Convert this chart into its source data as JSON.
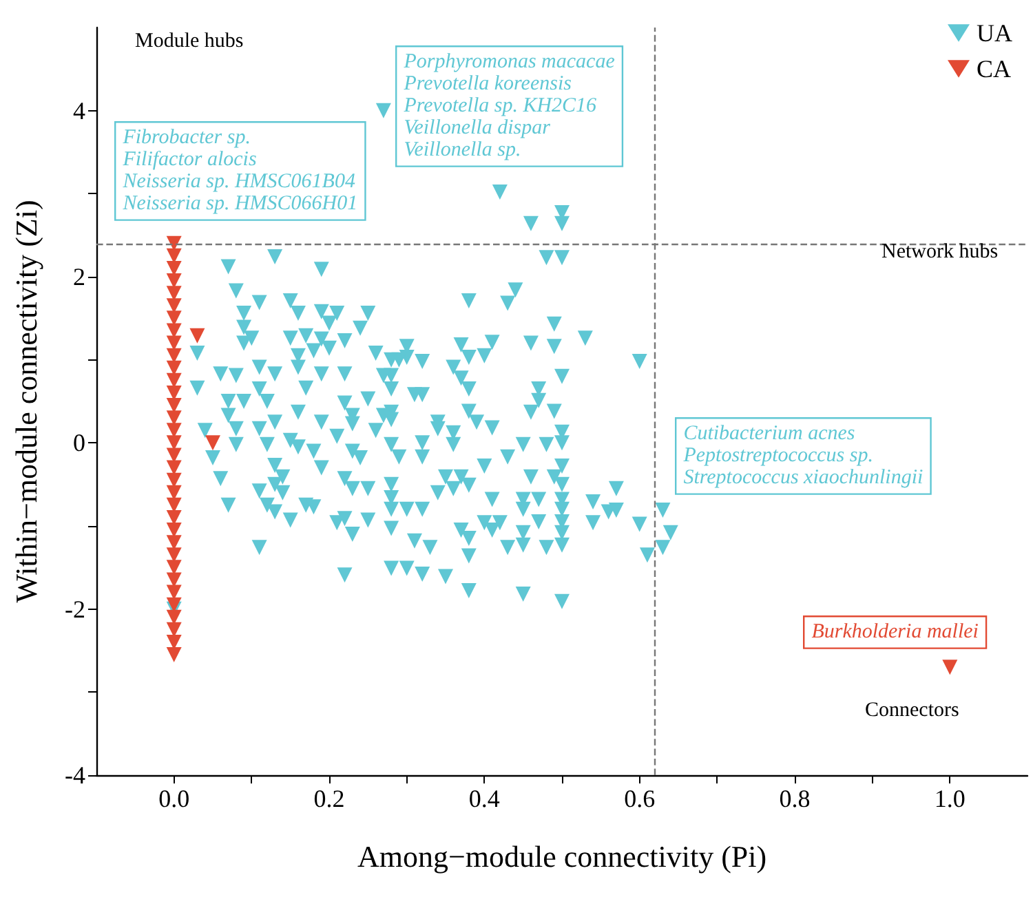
{
  "chart_data": {
    "type": "scatter",
    "xlabel": "Among−module connectivity (Pi)",
    "ylabel": "Within−module connectivity (Zi)",
    "xlim": [
      -0.1,
      1.1
    ],
    "ylim": [
      -4,
      5
    ],
    "xticks": [
      {
        "value": 0,
        "label": "0.0"
      },
      {
        "value": 0.1,
        "label": null
      },
      {
        "value": 0.2,
        "label": "0.2"
      },
      {
        "value": 0.3,
        "label": null
      },
      {
        "value": 0.4,
        "label": "0.4"
      },
      {
        "value": 0.5,
        "label": null
      },
      {
        "value": 0.6,
        "label": "0.6"
      },
      {
        "value": 0.7,
        "label": null
      },
      {
        "value": 0.8,
        "label": "0.8"
      },
      {
        "value": 0.9,
        "label": null
      },
      {
        "value": 1,
        "label": "1.0"
      }
    ],
    "yticks": [
      -4,
      {
        "value": -3,
        "label": null
      },
      -2,
      {
        "value": -1,
        "label": null
      },
      0,
      {
        "value": 1,
        "label": null
      },
      2,
      {
        "value": 3,
        "label": null
      },
      4
    ],
    "grid": false,
    "legend": "top right",
    "marker": "triangle",
    "ref_lines": [
      {
        "axis": "x",
        "value": 0.62,
        "label": null,
        "color": "#777777",
        "line_style": "dashed"
      },
      {
        "axis": "y",
        "value": 2.4,
        "label": null,
        "color": "#777777",
        "line_style": "dashed"
      }
    ],
    "annotations": [
      "Module hubs",
      "Network hubs",
      "Connectors",
      "Fibrobacter sp.\nFilifactor alocis\nNeisseria sp. HMSC061B04\nNeisseria sp. HMSC066H01",
      "Porphyromonas macacae\nPrevotella koreensis\nPrevotella sp. KH2C16\nVeillonella dispar\nVeillonella sp.",
      "Cutibacterium acnes\nPeptostreptococcus sp.\nStreptococcus xiaochunlingii",
      "Burkholderia mallei"
    ],
    "series": [
      {
        "name": "UA",
        "color": "#5fc7d4",
        "x": [
          0.27,
          0.42,
          0.46,
          0.5,
          0.5,
          0.48,
          0.5,
          0.44,
          0.38,
          0.43,
          0.49,
          0.53,
          0.46,
          0.49,
          0.41,
          0.37,
          0.38,
          0.4,
          0.6,
          0.36,
          0.37,
          0.5,
          0.38,
          0.47,
          0.47,
          0.46,
          0.49,
          0.38,
          0.39,
          0.41,
          0.34,
          0.34,
          0.36,
          0.5,
          0.3,
          0.3,
          0.32,
          0.28,
          0.28,
          0.28,
          0.31,
          0.32,
          0.28,
          0.5,
          0.45,
          0.48,
          0.32,
          0.36,
          0.28,
          0.29,
          0.32,
          0.43,
          0.4,
          0.5,
          0.35,
          0.37,
          0.46,
          0.49,
          0.28,
          0.5,
          0.57,
          0.34,
          0.36,
          0.38,
          0.41,
          0.45,
          0.47,
          0.5,
          0.54,
          0.28,
          0.28,
          0.3,
          0.32,
          0.45,
          0.5,
          0.56,
          0.57,
          0.63,
          0.4,
          0.42,
          0.47,
          0.5,
          0.54,
          0.6,
          0.28,
          0.37,
          0.41,
          0.45,
          0.5,
          0.64,
          0.31,
          0.38,
          0.33,
          0.43,
          0.45,
          0.48,
          0.5,
          0.63,
          0.38,
          0.61,
          0.28,
          0.3,
          0.32,
          0.35,
          0.38,
          0.45,
          0.5,
          0.13,
          0.07,
          0.19,
          0.08,
          0.11,
          0.15,
          0.09,
          0.16,
          0.19,
          0.21,
          0.25,
          0.2,
          0.09,
          0.24,
          0.1,
          0.15,
          0.17,
          0.19,
          0.22,
          0.09,
          0.03,
          0.18,
          0.2,
          0.26,
          0.11,
          0.16,
          0.16,
          0.29,
          0.06,
          0.08,
          0.13,
          0.19,
          0.22,
          0.27,
          0.03,
          0.11,
          0.17,
          0.07,
          0.09,
          0.12,
          0.22,
          0.25,
          0.07,
          0.16,
          0.23,
          0.27,
          0.04,
          0.08,
          0.13,
          0.19,
          0.11,
          0.08,
          0.05,
          0.12,
          0.15,
          0.16,
          0.18,
          0.21,
          0.23,
          0.26,
          0.28,
          0.23,
          0.24,
          0.19,
          0.13,
          0.14,
          0.13,
          0.06,
          0.11,
          0.14,
          0.22,
          0.23,
          0.25,
          0.07,
          0.12,
          0.13,
          0.15,
          0.17,
          0.18,
          0.21,
          0.22,
          0.25,
          0.23,
          0.11,
          0.22,
          0
        ],
        "values": [
          4.0,
          3.02,
          2.64,
          2.77,
          2.64,
          2.23,
          2.23,
          1.84,
          1.71,
          1.68,
          1.43,
          1.26,
          1.2,
          1.16,
          1.21,
          1.18,
          1.03,
          1.05,
          0.98,
          0.91,
          0.78,
          0.8,
          0.65,
          0.65,
          0.51,
          0.37,
          0.38,
          0.38,
          0.25,
          0.18,
          0.25,
          0.17,
          0.12,
          0.13,
          1.16,
          1.03,
          0.98,
          1.0,
          0.81,
          0.65,
          0.58,
          0.58,
          0.37,
          0.0,
          -0.02,
          -0.02,
          0.0,
          -0.02,
          -0.02,
          -0.17,
          -0.17,
          -0.17,
          -0.28,
          -0.28,
          -0.41,
          -0.41,
          -0.41,
          -0.41,
          -0.5,
          -0.5,
          -0.55,
          -0.6,
          -0.55,
          -0.51,
          -0.68,
          -0.68,
          -0.68,
          -0.68,
          -0.71,
          -0.66,
          -0.8,
          -0.8,
          -0.8,
          -0.8,
          -0.8,
          -0.83,
          -0.81,
          -0.81,
          -0.96,
          -0.96,
          -0.95,
          -0.95,
          -0.96,
          -0.98,
          -1.03,
          -1.05,
          -1.05,
          -1.08,
          -1.08,
          -1.08,
          -1.18,
          -1.15,
          -1.26,
          -1.26,
          -1.23,
          -1.26,
          -1.23,
          -1.26,
          -1.36,
          -1.35,
          -1.51,
          -1.51,
          -1.58,
          -1.61,
          -1.78,
          -1.82,
          -1.91,
          2.24,
          2.12,
          2.09,
          1.83,
          1.69,
          1.71,
          1.56,
          1.56,
          1.58,
          1.56,
          1.56,
          1.44,
          1.39,
          1.38,
          1.26,
          1.26,
          1.29,
          1.25,
          1.23,
          1.2,
          1.08,
          1.11,
          1.14,
          1.08,
          0.91,
          1.05,
          0.91,
          1.0,
          0.83,
          0.81,
          0.83,
          0.83,
          0.83,
          0.81,
          0.66,
          0.65,
          0.66,
          0.5,
          0.5,
          0.5,
          0.48,
          0.53,
          0.33,
          0.37,
          0.33,
          0.33,
          0.15,
          0.17,
          0.25,
          0.25,
          0.17,
          -0.02,
          -0.18,
          -0.02,
          0.03,
          -0.05,
          -0.1,
          0.08,
          0.23,
          0.15,
          0.28,
          -0.1,
          -0.18,
          -0.3,
          -0.27,
          -0.41,
          -0.5,
          -0.43,
          -0.58,
          -0.6,
          -0.43,
          -0.55,
          -0.55,
          -0.75,
          -0.75,
          -0.83,
          -0.93,
          -0.75,
          -0.77,
          -0.96,
          -0.91,
          -0.93,
          -1.1,
          -1.26,
          -1.59,
          -2.0
        ]
      },
      {
        "name": "CA",
        "color": "#e24a33",
        "x": [
          0,
          0,
          0,
          0,
          0,
          0,
          0,
          0,
          0,
          0,
          0,
          0,
          0,
          0,
          0,
          0,
          0,
          0,
          0,
          0,
          0,
          0,
          0,
          0,
          0,
          0,
          0,
          0,
          0,
          0,
          0,
          0,
          0,
          0,
          0.03,
          0.05,
          1.0
        ],
        "values": [
          2.4,
          2.25,
          2.1,
          1.95,
          1.8,
          1.65,
          1.5,
          1.35,
          1.2,
          1.05,
          0.9,
          0.75,
          0.6,
          0.45,
          0.3,
          0.15,
          0,
          -0.15,
          -0.3,
          -0.45,
          -0.6,
          -0.75,
          -0.9,
          -1.05,
          -1.2,
          -1.35,
          -1.5,
          -1.65,
          -1.8,
          -1.95,
          -2.1,
          -2.25,
          -2.4,
          -2.55,
          1.29,
          0.0,
          -2.7
        ]
      }
    ]
  }
}
